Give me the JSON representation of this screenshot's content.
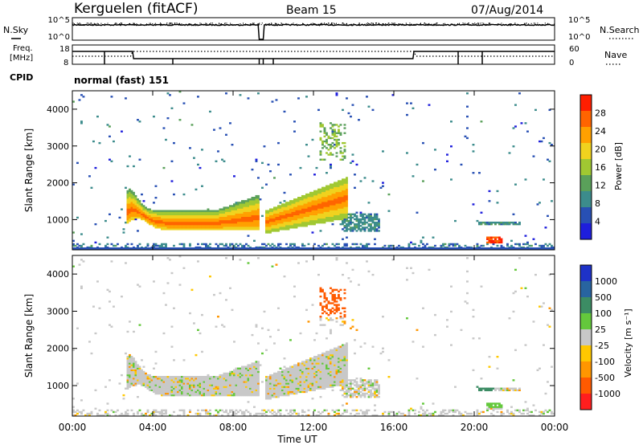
{
  "header": {
    "station": "Kerguelen (fitACF)",
    "beam": "Beam 15",
    "date": "07/Aug/2014"
  },
  "status_panels": {
    "nsky_label": "N.Sky",
    "nsearch_label": "N.Search",
    "noise_ticks_left": [
      "10^5",
      "10^0"
    ],
    "noise_ticks_right": [
      "10^5",
      "10^0"
    ],
    "freq_label_1": "Freq.",
    "freq_label_2": "[MHz]",
    "freq_ticks": [
      "18",
      "8"
    ],
    "nave_label": "Nave",
    "nave_ticks": [
      "60",
      "0"
    ],
    "cpid_label": "CPID",
    "cpid_text": "normal (fast) 151"
  },
  "chart_data": [
    {
      "type": "heatmap",
      "name": "power",
      "ylabel": "Slant Range [km]",
      "yticks": [
        "1000",
        "2000",
        "3000",
        "4000"
      ],
      "ylim": [
        180,
        4500
      ],
      "xlim_hours": [
        0,
        24
      ],
      "colorbar_label": "Power [dB]",
      "colorbar_ticks": [
        "4",
        "8",
        "12",
        "16",
        "20",
        "24",
        "28"
      ],
      "colorbar_colors": [
        "#1e1edc",
        "#2850b4",
        "#3c8c8c",
        "#5aa05a",
        "#a0c832",
        "#f0d21e",
        "#ffa000",
        "#ff6400",
        "#ff1e00"
      ]
    },
    {
      "type": "heatmap",
      "name": "velocity",
      "ylabel": "Slant Range [km]",
      "yticks": [
        "1000",
        "2000",
        "3000",
        "4000"
      ],
      "ylim": [
        180,
        4500
      ],
      "xlim_hours": [
        0,
        24
      ],
      "xticks": [
        "00:00",
        "04:00",
        "08:00",
        "12:00",
        "16:00",
        "20:00",
        "00:00"
      ],
      "xlabel": "Time UT",
      "colorbar_label": "Velocity [m s⁻¹]",
      "colorbar_ticks": [
        "1000",
        "500",
        "100",
        "25",
        "-25",
        "-100",
        "-500",
        "-1000"
      ],
      "colorbar_colors": [
        "#1e32c8",
        "#2864a0",
        "#3c8c64",
        "#64c83c",
        "#c8c8c8",
        "#ffc800",
        "#ff9600",
        "#ff5a00",
        "#ff1e1e"
      ]
    }
  ]
}
